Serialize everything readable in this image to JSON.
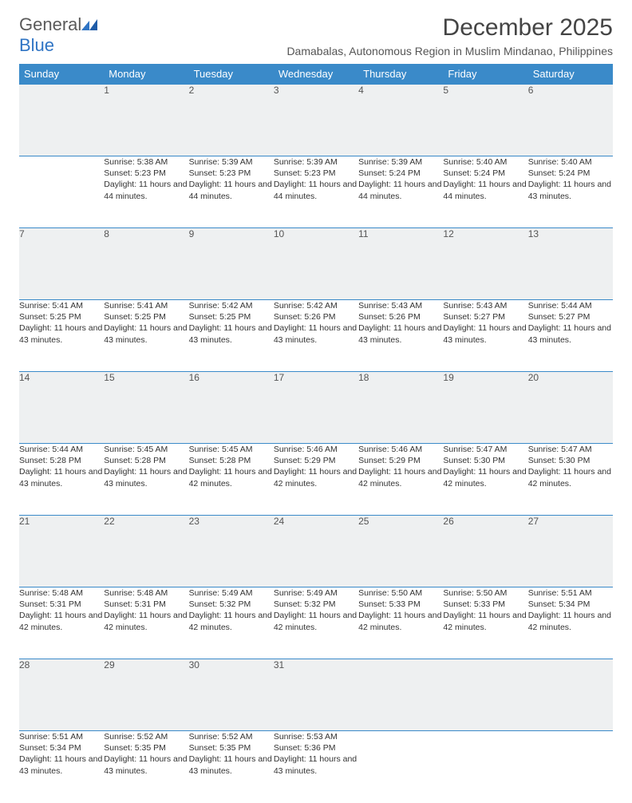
{
  "logo": {
    "word1": "General",
    "word2": "Blue"
  },
  "title": "December 2025",
  "location": "Damabalas, Autonomous Region in Muslim Mindanao, Philippines",
  "colors": {
    "header_bg": "#3a8ac9",
    "header_text": "#ffffff",
    "daynum_bg": "#eef0f1",
    "rule": "#3a8ac9",
    "logo_gray": "#5a5a5a",
    "logo_blue": "#2f74c4",
    "body_text": "#333333"
  },
  "weekdays": [
    "Sunday",
    "Monday",
    "Tuesday",
    "Wednesday",
    "Thursday",
    "Friday",
    "Saturday"
  ],
  "weeks": [
    [
      null,
      {
        "n": "1",
        "sr": "5:38 AM",
        "ss": "5:23 PM",
        "dl": "11 hours and 44 minutes."
      },
      {
        "n": "2",
        "sr": "5:39 AM",
        "ss": "5:23 PM",
        "dl": "11 hours and 44 minutes."
      },
      {
        "n": "3",
        "sr": "5:39 AM",
        "ss": "5:23 PM",
        "dl": "11 hours and 44 minutes."
      },
      {
        "n": "4",
        "sr": "5:39 AM",
        "ss": "5:24 PM",
        "dl": "11 hours and 44 minutes."
      },
      {
        "n": "5",
        "sr": "5:40 AM",
        "ss": "5:24 PM",
        "dl": "11 hours and 44 minutes."
      },
      {
        "n": "6",
        "sr": "5:40 AM",
        "ss": "5:24 PM",
        "dl": "11 hours and 43 minutes."
      }
    ],
    [
      {
        "n": "7",
        "sr": "5:41 AM",
        "ss": "5:25 PM",
        "dl": "11 hours and 43 minutes."
      },
      {
        "n": "8",
        "sr": "5:41 AM",
        "ss": "5:25 PM",
        "dl": "11 hours and 43 minutes."
      },
      {
        "n": "9",
        "sr": "5:42 AM",
        "ss": "5:25 PM",
        "dl": "11 hours and 43 minutes."
      },
      {
        "n": "10",
        "sr": "5:42 AM",
        "ss": "5:26 PM",
        "dl": "11 hours and 43 minutes."
      },
      {
        "n": "11",
        "sr": "5:43 AM",
        "ss": "5:26 PM",
        "dl": "11 hours and 43 minutes."
      },
      {
        "n": "12",
        "sr": "5:43 AM",
        "ss": "5:27 PM",
        "dl": "11 hours and 43 minutes."
      },
      {
        "n": "13",
        "sr": "5:44 AM",
        "ss": "5:27 PM",
        "dl": "11 hours and 43 minutes."
      }
    ],
    [
      {
        "n": "14",
        "sr": "5:44 AM",
        "ss": "5:28 PM",
        "dl": "11 hours and 43 minutes."
      },
      {
        "n": "15",
        "sr": "5:45 AM",
        "ss": "5:28 PM",
        "dl": "11 hours and 43 minutes."
      },
      {
        "n": "16",
        "sr": "5:45 AM",
        "ss": "5:28 PM",
        "dl": "11 hours and 42 minutes."
      },
      {
        "n": "17",
        "sr": "5:46 AM",
        "ss": "5:29 PM",
        "dl": "11 hours and 42 minutes."
      },
      {
        "n": "18",
        "sr": "5:46 AM",
        "ss": "5:29 PM",
        "dl": "11 hours and 42 minutes."
      },
      {
        "n": "19",
        "sr": "5:47 AM",
        "ss": "5:30 PM",
        "dl": "11 hours and 42 minutes."
      },
      {
        "n": "20",
        "sr": "5:47 AM",
        "ss": "5:30 PM",
        "dl": "11 hours and 42 minutes."
      }
    ],
    [
      {
        "n": "21",
        "sr": "5:48 AM",
        "ss": "5:31 PM",
        "dl": "11 hours and 42 minutes."
      },
      {
        "n": "22",
        "sr": "5:48 AM",
        "ss": "5:31 PM",
        "dl": "11 hours and 42 minutes."
      },
      {
        "n": "23",
        "sr": "5:49 AM",
        "ss": "5:32 PM",
        "dl": "11 hours and 42 minutes."
      },
      {
        "n": "24",
        "sr": "5:49 AM",
        "ss": "5:32 PM",
        "dl": "11 hours and 42 minutes."
      },
      {
        "n": "25",
        "sr": "5:50 AM",
        "ss": "5:33 PM",
        "dl": "11 hours and 42 minutes."
      },
      {
        "n": "26",
        "sr": "5:50 AM",
        "ss": "5:33 PM",
        "dl": "11 hours and 42 minutes."
      },
      {
        "n": "27",
        "sr": "5:51 AM",
        "ss": "5:34 PM",
        "dl": "11 hours and 42 minutes."
      }
    ],
    [
      {
        "n": "28",
        "sr": "5:51 AM",
        "ss": "5:34 PM",
        "dl": "11 hours and 43 minutes."
      },
      {
        "n": "29",
        "sr": "5:52 AM",
        "ss": "5:35 PM",
        "dl": "11 hours and 43 minutes."
      },
      {
        "n": "30",
        "sr": "5:52 AM",
        "ss": "5:35 PM",
        "dl": "11 hours and 43 minutes."
      },
      {
        "n": "31",
        "sr": "5:53 AM",
        "ss": "5:36 PM",
        "dl": "11 hours and 43 minutes."
      },
      null,
      null,
      null
    ]
  ],
  "labels": {
    "sunrise": "Sunrise:",
    "sunset": "Sunset:",
    "daylight": "Daylight:"
  }
}
